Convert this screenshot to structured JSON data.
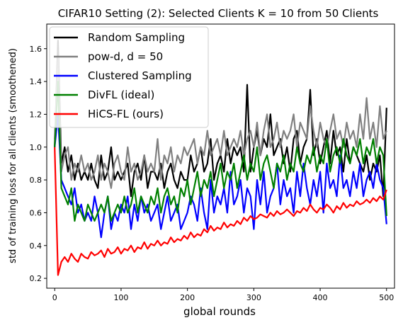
{
  "chart_data": {
    "type": "line",
    "title": "CIFAR10 Setting (2): Selected Clients K = 10 from 50 Clients",
    "xlabel": "global rounds",
    "ylabel": "std of training loss for all clients (smoothened)",
    "xlim": [
      -12,
      512
    ],
    "ylim": [
      0.14,
      1.75
    ],
    "xticks": [
      0,
      100,
      200,
      300,
      400,
      500
    ],
    "yticks": [
      0.2,
      0.4,
      0.6,
      0.8,
      1.0,
      1.2,
      1.4,
      1.6
    ],
    "xtick_labels": [
      "0",
      "100",
      "200",
      "300",
      "400",
      "500"
    ],
    "ytick_labels": [
      "0.2",
      "0.4",
      "0.6",
      "0.8",
      "1.0",
      "1.2",
      "1.4",
      "1.6"
    ],
    "grid": false,
    "legend_position": "top-left",
    "x": [
      0,
      5,
      10,
      15,
      20,
      25,
      30,
      35,
      40,
      45,
      50,
      55,
      60,
      65,
      70,
      75,
      80,
      85,
      90,
      95,
      100,
      105,
      110,
      115,
      120,
      125,
      130,
      135,
      140,
      145,
      150,
      155,
      160,
      165,
      170,
      175,
      180,
      185,
      190,
      195,
      200,
      205,
      210,
      215,
      220,
      225,
      230,
      235,
      240,
      245,
      250,
      255,
      260,
      265,
      270,
      275,
      280,
      285,
      290,
      295,
      300,
      305,
      310,
      315,
      320,
      325,
      330,
      335,
      340,
      345,
      350,
      355,
      360,
      365,
      370,
      375,
      380,
      385,
      390,
      395,
      400,
      405,
      410,
      415,
      420,
      425,
      430,
      435,
      440,
      445,
      450,
      455,
      460,
      465,
      470,
      475,
      480,
      485,
      490,
      495,
      500
    ],
    "series": [
      {
        "name": "Random Sampling",
        "color": "#000000",
        "values": [
          1.0,
          1.65,
          0.9,
          1.0,
          0.85,
          0.95,
          0.8,
          0.9,
          0.8,
          0.85,
          0.8,
          0.9,
          0.8,
          0.75,
          0.95,
          0.8,
          0.85,
          1.0,
          0.8,
          0.85,
          0.8,
          0.85,
          0.9,
          0.7,
          0.85,
          0.9,
          0.8,
          0.95,
          0.75,
          0.85,
          0.85,
          0.8,
          0.9,
          0.75,
          0.85,
          0.9,
          0.8,
          0.75,
          0.85,
          0.8,
          0.8,
          0.95,
          0.85,
          0.9,
          1.0,
          0.85,
          0.9,
          1.05,
          0.8,
          0.9,
          0.95,
          0.85,
          1.05,
          0.9,
          1.0,
          0.95,
          1.0,
          0.85,
          1.38,
          0.85,
          1.0,
          1.1,
          0.95,
          1.05,
          1.0,
          1.2,
          0.95,
          1.0,
          1.05,
          0.9,
          1.0,
          0.85,
          1.05,
          1.1,
          0.9,
          1.0,
          1.05,
          1.35,
          0.95,
          1.05,
          0.9,
          1.0,
          1.1,
          0.9,
          1.1,
          0.95,
          1.0,
          0.85,
          1.05,
          0.9,
          1.0,
          0.95,
          0.9,
          0.85,
          0.95,
          0.8,
          0.9,
          0.85,
          0.95,
          0.7,
          1.24
        ]
      },
      {
        "name": "pow-d, d = 50",
        "color": "#808080",
        "values": [
          1.05,
          1.55,
          0.85,
          0.95,
          1.0,
          0.8,
          0.9,
          0.85,
          0.95,
          0.85,
          0.9,
          0.8,
          0.85,
          0.95,
          0.8,
          0.9,
          0.85,
          0.75,
          0.9,
          0.95,
          0.85,
          0.8,
          1.0,
          0.85,
          0.9,
          0.8,
          0.85,
          0.95,
          0.85,
          0.9,
          0.85,
          1.05,
          0.8,
          0.95,
          0.9,
          1.0,
          0.85,
          0.95,
          0.9,
          1.0,
          0.95,
          1.0,
          1.05,
          0.9,
          1.0,
          0.95,
          1.1,
          0.95,
          1.0,
          1.05,
          0.95,
          1.1,
          0.95,
          1.0,
          1.05,
          1.0,
          1.1,
          0.95,
          1.05,
          1.1,
          1.0,
          1.15,
          0.95,
          1.1,
          1.2,
          1.0,
          1.05,
          1.15,
          1.0,
          1.1,
          1.05,
          1.1,
          1.2,
          1.0,
          1.15,
          1.1,
          1.05,
          1.25,
          1.1,
          1.0,
          1.15,
          1.05,
          1.0,
          1.1,
          1.2,
          1.05,
          1.1,
          1.0,
          1.15,
          1.05,
          1.1,
          1.0,
          1.2,
          1.05,
          1.3,
          1.05,
          1.15,
          1.0,
          1.25,
          1.05,
          1.1
        ]
      },
      {
        "name": "Clustered Sampling",
        "color": "#0000ff",
        "values": [
          1.0,
          1.2,
          0.8,
          0.75,
          0.7,
          0.65,
          0.75,
          0.6,
          0.65,
          0.55,
          0.6,
          0.55,
          0.7,
          0.6,
          0.45,
          0.6,
          0.7,
          0.5,
          0.6,
          0.55,
          0.65,
          0.6,
          0.7,
          0.5,
          0.65,
          0.55,
          0.7,
          0.6,
          0.65,
          0.55,
          0.6,
          0.65,
          0.5,
          0.6,
          0.7,
          0.55,
          0.6,
          0.65,
          0.5,
          0.55,
          0.6,
          0.7,
          0.65,
          0.55,
          0.75,
          0.6,
          0.5,
          0.8,
          0.6,
          0.7,
          0.65,
          0.75,
          0.6,
          0.85,
          0.65,
          0.7,
          0.8,
          0.6,
          0.75,
          0.7,
          0.5,
          0.8,
          0.65,
          0.85,
          0.6,
          0.7,
          0.75,
          0.9,
          0.65,
          0.8,
          0.7,
          0.75,
          0.6,
          0.85,
          0.7,
          0.9,
          0.75,
          0.65,
          0.8,
          0.7,
          0.85,
          0.6,
          0.9,
          0.75,
          0.8,
          0.7,
          0.95,
          0.75,
          0.8,
          0.7,
          0.85,
          0.75,
          0.9,
          0.7,
          0.8,
          0.85,
          0.75,
          0.9,
          0.8,
          0.75,
          0.53
        ]
      },
      {
        "name": "DivFL (ideal)",
        "color": "#008000",
        "values": [
          1.0,
          1.4,
          0.75,
          0.7,
          0.65,
          0.75,
          0.55,
          0.65,
          0.6,
          0.55,
          0.65,
          0.6,
          0.55,
          0.6,
          0.65,
          0.6,
          0.7,
          0.55,
          0.6,
          0.65,
          0.6,
          0.7,
          0.6,
          0.65,
          0.75,
          0.6,
          0.7,
          0.65,
          0.6,
          0.7,
          0.65,
          0.75,
          0.6,
          0.7,
          0.75,
          0.65,
          0.7,
          0.6,
          0.75,
          0.7,
          0.8,
          0.65,
          0.75,
          0.85,
          0.7,
          0.8,
          0.75,
          0.85,
          0.7,
          0.8,
          0.9,
          0.75,
          0.85,
          0.8,
          0.9,
          0.75,
          0.85,
          0.95,
          0.8,
          0.9,
          0.85,
          1.0,
          0.8,
          0.9,
          0.95,
          0.85,
          0.75,
          0.9,
          0.85,
          0.95,
          0.8,
          0.9,
          0.85,
          1.0,
          0.9,
          0.85,
          0.95,
          0.9,
          1.0,
          0.85,
          0.95,
          0.9,
          1.05,
          0.85,
          0.95,
          1.0,
          0.9,
          1.05,
          0.95,
          0.9,
          1.0,
          0.95,
          1.05,
          0.9,
          1.0,
          0.95,
          1.05,
          0.9,
          1.0,
          0.95,
          0.58
        ]
      },
      {
        "name": "HiCS-FL (ours)",
        "color": "#ff0000",
        "values": [
          1.0,
          0.22,
          0.3,
          0.33,
          0.3,
          0.35,
          0.32,
          0.3,
          0.35,
          0.33,
          0.32,
          0.36,
          0.34,
          0.35,
          0.37,
          0.33,
          0.38,
          0.35,
          0.36,
          0.39,
          0.35,
          0.38,
          0.37,
          0.4,
          0.36,
          0.39,
          0.38,
          0.42,
          0.38,
          0.41,
          0.4,
          0.43,
          0.4,
          0.42,
          0.41,
          0.45,
          0.42,
          0.44,
          0.43,
          0.46,
          0.44,
          0.48,
          0.45,
          0.47,
          0.46,
          0.5,
          0.48,
          0.52,
          0.49,
          0.51,
          0.5,
          0.54,
          0.51,
          0.53,
          0.52,
          0.55,
          0.53,
          0.57,
          0.55,
          0.58,
          0.56,
          0.57,
          0.59,
          0.58,
          0.57,
          0.6,
          0.58,
          0.61,
          0.59,
          0.6,
          0.62,
          0.6,
          0.58,
          0.61,
          0.6,
          0.63,
          0.61,
          0.65,
          0.62,
          0.6,
          0.63,
          0.62,
          0.65,
          0.63,
          0.6,
          0.64,
          0.62,
          0.66,
          0.63,
          0.65,
          0.64,
          0.67,
          0.65,
          0.66,
          0.68,
          0.66,
          0.69,
          0.67,
          0.7,
          0.68,
          0.74
        ]
      }
    ]
  }
}
